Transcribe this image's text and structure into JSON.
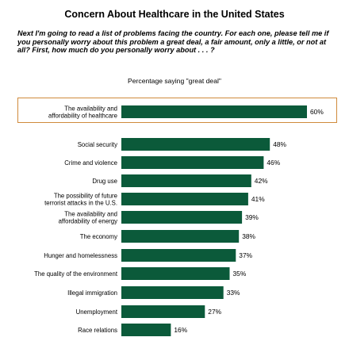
{
  "header": {
    "title": "Concern About Healthcare in the United States",
    "question": "Next I'm going to read a list of problems facing the country. For each one, please tell me if you personally worry about this problem a great deal, a fair amount, only a little, or not at all? First, how much do you personally worry about . . . ?",
    "subtitle": "Percentage saying \"great deal\""
  },
  "chart_data": {
    "type": "bar",
    "orientation": "horizontal",
    "categories": [
      "The availability and affordability of healthcare",
      "Social security",
      "Crime and violence",
      "Drug use",
      "The possibility of future terrorist attacks in the U.S.",
      "The availability and affordability of energy",
      "The economy",
      "Hunger and homelessness",
      "The quality of the environment",
      "Illegal immigration",
      "Unemployment",
      "Race relations"
    ],
    "category_lines": [
      [
        "The availability and",
        "affordability of healthcare"
      ],
      [
        "Social security"
      ],
      [
        "Crime and violence"
      ],
      [
        "Drug use"
      ],
      [
        "The possibility of future",
        "terrorist attacks in the U.S."
      ],
      [
        "The availability and",
        "affordability of energy"
      ],
      [
        "The economy"
      ],
      [
        "Hunger and homelessness"
      ],
      [
        "The quality of the environment"
      ],
      [
        "Illegal immigration"
      ],
      [
        "Unemployment"
      ],
      [
        "Race relations"
      ]
    ],
    "values": [
      60,
      48,
      46,
      42,
      41,
      39,
      38,
      37,
      35,
      33,
      27,
      16
    ],
    "value_labels": [
      "60%",
      "48%",
      "46%",
      "42%",
      "41%",
      "39%",
      "38%",
      "37%",
      "35%",
      "33%",
      "27%",
      "16%"
    ],
    "highlighted": "The availability and affordability of healthcare",
    "bar_color": "#0b5a3a",
    "highlight_border_color": "#d08a3c",
    "xlim": [
      0,
      100
    ],
    "xlabel": "",
    "ylabel": "",
    "grid": false,
    "legend": "none"
  }
}
